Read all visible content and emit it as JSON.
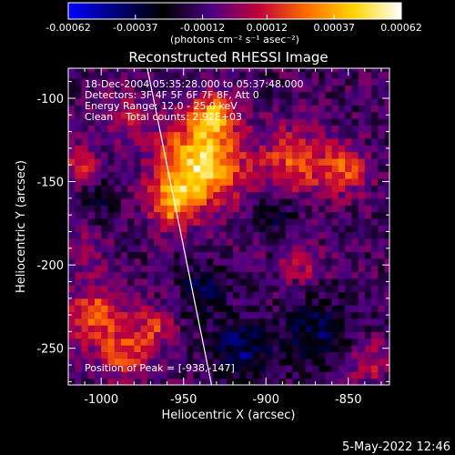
{
  "chart_data": {
    "type": "heatmap",
    "title": "Reconstructed RHESSI Image",
    "xlabel": "Heliocentric X (arcsec)",
    "ylabel": "Heliocentric Y (arcsec)",
    "xlim": [
      -1020,
      -825
    ],
    "ylim": [
      -272,
      -82
    ],
    "xticks": [
      -1000,
      -950,
      -900,
      -850
    ],
    "yticks": [
      -100,
      -150,
      -200,
      -250
    ],
    "grid": false,
    "colorbar": {
      "position": "top",
      "range": [
        -0.00062,
        0.00062
      ],
      "tick_values": [
        -0.00062,
        -0.00037,
        -0.00012,
        0.00012,
        0.00037,
        0.00062
      ],
      "tick_labels": [
        "-0.00062",
        "-0.00037",
        "-0.00012",
        "0.00012",
        "0.00037",
        "0.00062"
      ],
      "unit_label": "(photons cm⁻² s⁻¹ asec⁻²)",
      "colormap": [
        "#0000ff",
        "#00007a",
        "#000000",
        "#4b0082",
        "#c0003a",
        "#ff6a00",
        "#ffd500",
        "#ffffff"
      ]
    },
    "annotations": [
      "18-Dec-2004 05:35:28.000 to 05:37:48.000",
      "Detectors: 3F 4F 5F 6F 7F 8F, Att 0",
      "Energy Range: 12.0 - 25.0 keV",
      "Clean    Total counts: 2.92E+03"
    ],
    "peak_label": "Position of Peak = [-938,-147]",
    "limb_color": "#ffffff",
    "sources": [
      {
        "x": -940,
        "y": -140,
        "sigma": 17,
        "amplitude": 0.00062
      },
      {
        "x": -932,
        "y": -110,
        "sigma": 10,
        "amplitude": 0.00042
      },
      {
        "x": -957,
        "y": -163,
        "sigma": 10,
        "amplitude": 0.00038
      },
      {
        "x": -883,
        "y": -137,
        "sigma": 14,
        "amplitude": 0.00033
      },
      {
        "x": -853,
        "y": -143,
        "sigma": 10,
        "amplitude": 0.00032
      },
      {
        "x": -1003,
        "y": -230,
        "sigma": 13,
        "amplitude": 0.00035
      },
      {
        "x": -985,
        "y": -255,
        "sigma": 10,
        "amplitude": 0.00032
      },
      {
        "x": -968,
        "y": -237,
        "sigma": 8,
        "amplitude": 0.00026
      },
      {
        "x": -1010,
        "y": -190,
        "sigma": 8,
        "amplitude": 0.0002
      },
      {
        "x": -1012,
        "y": -138,
        "sigma": 8,
        "amplitude": 0.00024
      },
      {
        "x": -985,
        "y": -110,
        "sigma": 10,
        "amplitude": 0.0002
      },
      {
        "x": -878,
        "y": -198,
        "sigma": 9,
        "amplitude": 0.0002
      },
      {
        "x": -838,
        "y": -258,
        "sigma": 9,
        "amplitude": 0.00022
      },
      {
        "x": -938,
        "y": -215,
        "sigma": 10,
        "amplitude": -0.00022
      },
      {
        "x": -915,
        "y": -250,
        "sigma": 12,
        "amplitude": -0.0003
      },
      {
        "x": -870,
        "y": -240,
        "sigma": 14,
        "amplitude": -0.00025
      },
      {
        "x": -895,
        "y": -170,
        "sigma": 9,
        "amplitude": -0.0002
      },
      {
        "x": -1000,
        "y": -160,
        "sigma": 8,
        "amplitude": -0.00015
      }
    ]
  },
  "footer": {
    "timestamp": "5-May-2022 12:46"
  }
}
